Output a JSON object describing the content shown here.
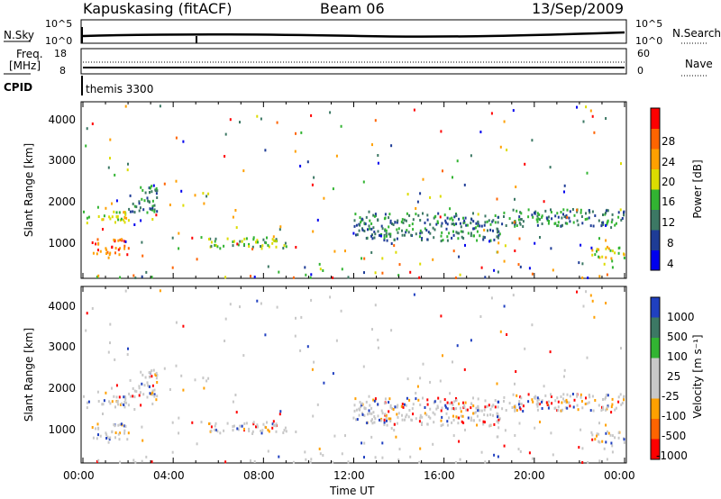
{
  "header": {
    "station": "Kapuskasing (fitACF)",
    "beam": "Beam 06",
    "date": "13/Sep/2009"
  },
  "panel_top": {
    "left_label": "N.Sky",
    "left_ticks": [
      "10^5",
      "10^0"
    ],
    "right_ticks": [
      "10^5",
      "10^0"
    ],
    "right_label": "N.Search"
  },
  "panel_freq": {
    "left_label_1": "Freq.",
    "left_label_2": "[MHz]",
    "left_ticks": [
      "18",
      "8"
    ],
    "right_ticks": [
      "60",
      "0"
    ],
    "right_label": "Nave",
    "cpid_label": "CPID",
    "cpid_text": "themis 3300"
  },
  "power_panel": {
    "ylabel": "Slant Range [km]",
    "yticks": [
      "4000",
      "3000",
      "2000",
      "1000"
    ],
    "colorbar_label": "Power [dB]",
    "colorbar_ticks": [
      "28",
      "24",
      "20",
      "16",
      "12",
      "8",
      "4"
    ],
    "colorbar_colors": [
      "#0000ee",
      "#1e3c96",
      "#3c7864",
      "#32b432",
      "#dcdc00",
      "#ffa000",
      "#ff6400",
      "#ff0000"
    ]
  },
  "velocity_panel": {
    "ylabel": "Slant Range [km]",
    "yticks": [
      "4000",
      "3000",
      "2000",
      "1000"
    ],
    "colorbar_label": "Velocity [m s⁻¹]",
    "colorbar_ticks": [
      "1000",
      "500",
      "100",
      "25",
      "-25",
      "-100",
      "-500",
      "-1000"
    ],
    "colorbar_colors": [
      "#2040c0",
      "#3c7864",
      "#32b432",
      "#c8c8c8",
      "#c8c8c8",
      "#ffa000",
      "#ff6400",
      "#ff0000"
    ]
  },
  "xaxis": {
    "ticks": [
      "00:00",
      "04:00",
      "08:00",
      "12:00",
      "16:00",
      "20:00",
      "00:00"
    ],
    "label": "Time UT"
  },
  "chart_data": {
    "type": "heatmap",
    "x_range_hours": [
      0,
      24
    ],
    "y_range_km": [
      180,
      4500
    ],
    "echo_regions": [
      {
        "t0": 0.0,
        "t1": 2.0,
        "r0": 1550,
        "r1": 1850,
        "power": 16
      },
      {
        "t0": 0.3,
        "t1": 2.0,
        "r0": 750,
        "r1": 1150,
        "power": 24
      },
      {
        "t0": 2.0,
        "t1": 3.3,
        "r0": 1800,
        "r1": 2500,
        "power": 8
      },
      {
        "t0": 5.5,
        "t1": 9.0,
        "r0": 900,
        "r1": 1200,
        "power": 12
      },
      {
        "t0": 12.0,
        "t1": 18.5,
        "r0": 1100,
        "r1": 1800,
        "power": 8
      },
      {
        "t0": 18.5,
        "t1": 24.0,
        "r0": 1450,
        "r1": 1900,
        "power": 8
      },
      {
        "t0": 22.5,
        "t1": 24.0,
        "r0": 650,
        "r1": 950,
        "power": 16
      }
    ]
  }
}
